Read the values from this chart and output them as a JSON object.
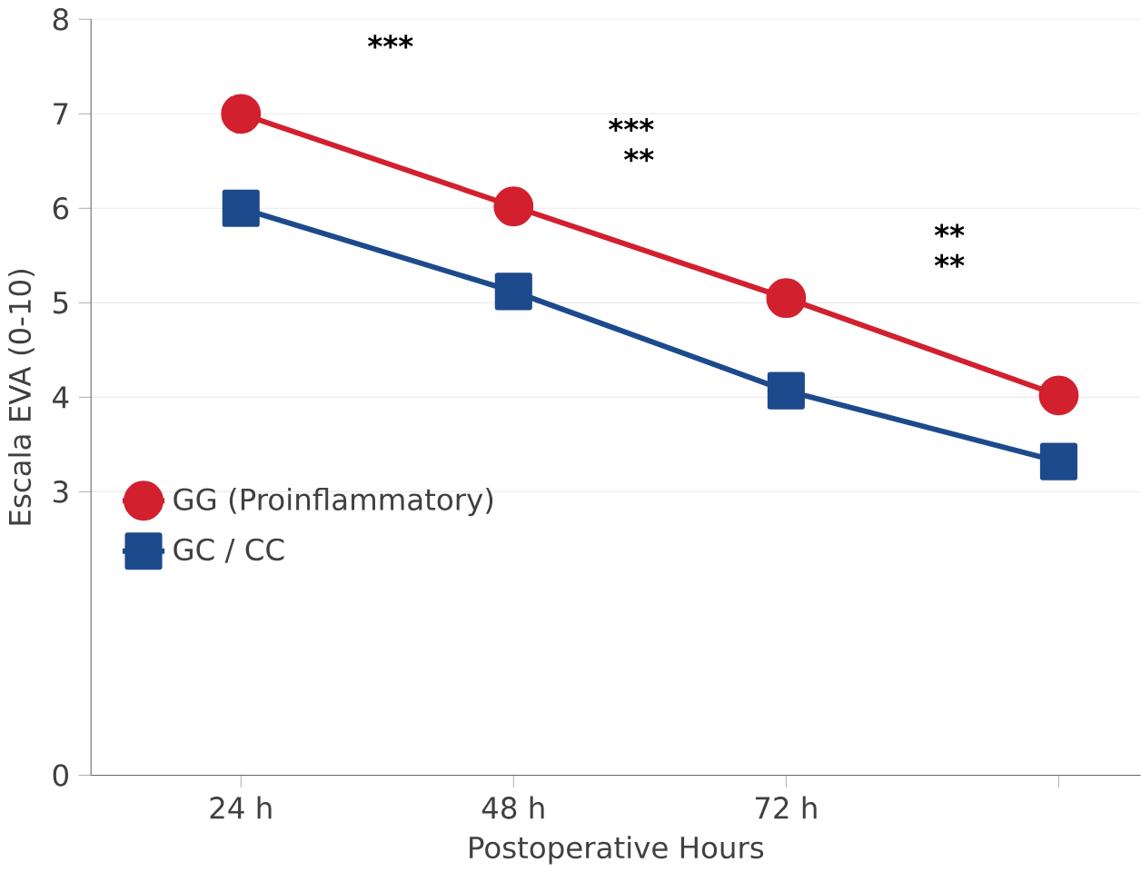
{
  "chart_data": {
    "type": "line",
    "xlabel": "Postoperative Hours",
    "ylabel": "Escala EVA (0-10)",
    "categories": [
      "24 h",
      "48 h",
      "72 h",
      null
    ],
    "series": [
      {
        "name": "GG (Proinflammatory)",
        "color": "#d2202f",
        "marker": "circle",
        "values": [
          7.0,
          6.02,
          5.05,
          4.02
        ]
      },
      {
        "name": "GC / CC",
        "color": "#1d4a8c",
        "marker": "square",
        "values": [
          6.0,
          5.12,
          4.07,
          3.32
        ]
      }
    ],
    "ylim": [
      0,
      8
    ],
    "yticks": [
      0,
      3,
      4,
      5,
      6,
      7,
      8
    ],
    "grid": "y",
    "legend": "left",
    "annotations": [
      "***",
      "***",
      "**",
      "**",
      "**"
    ]
  }
}
